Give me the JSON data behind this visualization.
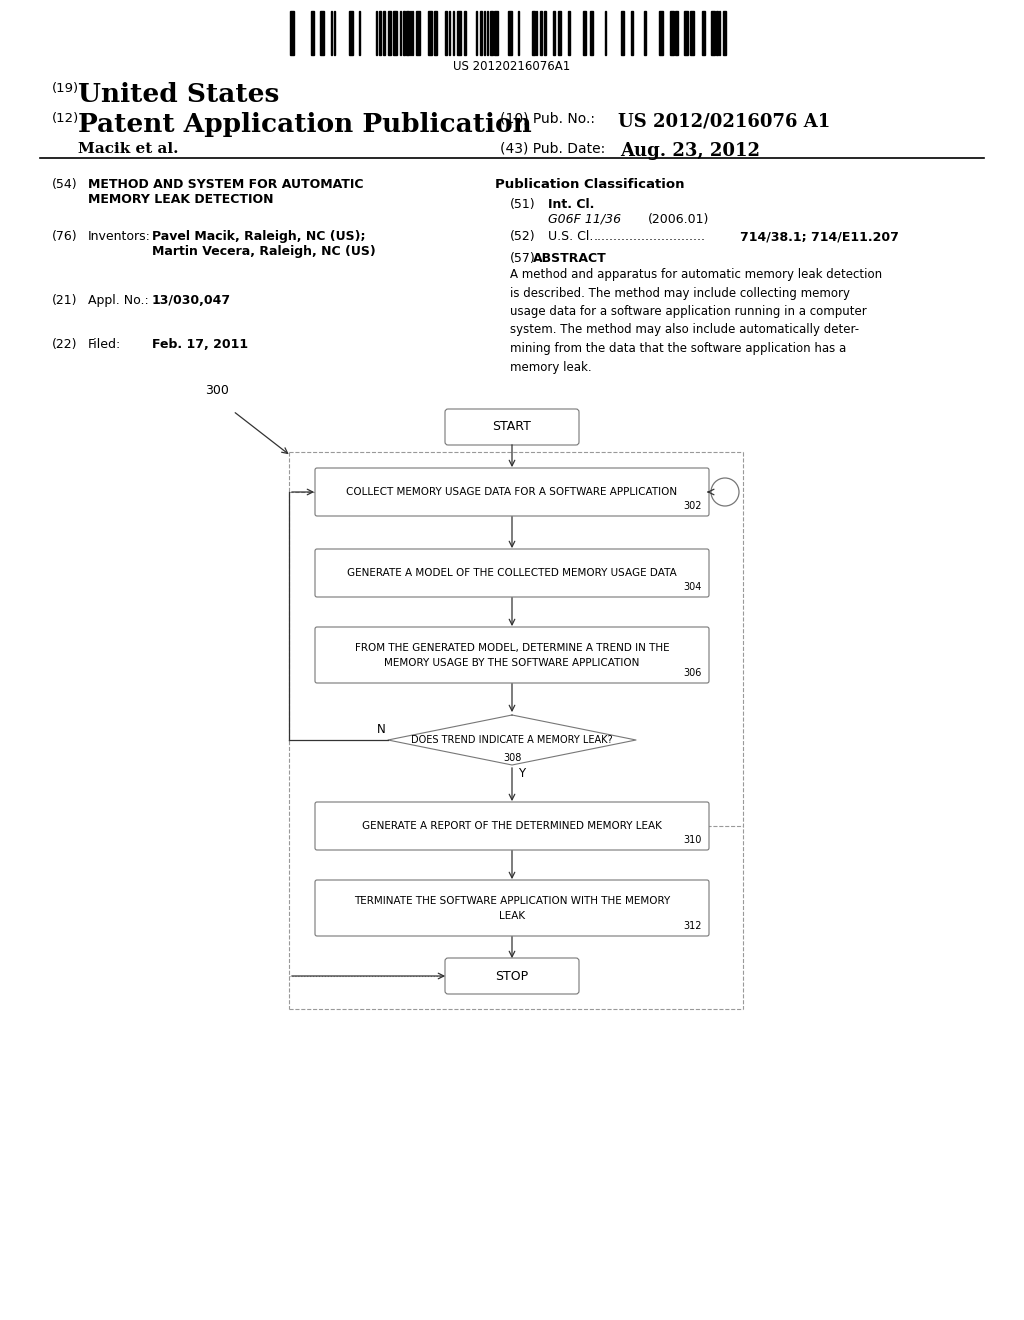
{
  "bg_color": "#ffffff",
  "barcode_text": "US 20120216076A1",
  "header": {
    "country_prefix": "(19)",
    "country": "United States",
    "type_prefix": "(12)",
    "type": "Patent Application Publication",
    "pub_no_prefix": "(10) Pub. No.:",
    "pub_no": "US 2012/0216076 A1",
    "authors": "Macik et al.",
    "date_prefix": "(43) Pub. Date:",
    "date": "Aug. 23, 2012"
  },
  "left_col": {
    "title_prefix": "(54)",
    "title_line1": "METHOD AND SYSTEM FOR AUTOMATIC",
    "title_line2": "MEMORY LEAK DETECTION",
    "inventors_prefix": "(76)",
    "inventors_label": "Inventors:",
    "inventors_line1": "Pavel Macik, Raleigh, NC (US);",
    "inventors_line2": "Martin Vecera, Raleigh, NC (US)",
    "appl_prefix": "(21)",
    "appl_label": "Appl. No.:",
    "appl_value": "13/030,047",
    "filed_prefix": "(22)",
    "filed_label": "Filed:",
    "filed_value": "Feb. 17, 2011"
  },
  "right_col": {
    "pub_class_title": "Publication Classification",
    "int_cl_prefix": "(51)",
    "int_cl_label": "Int. Cl.",
    "int_cl_class": "G06F 11/36",
    "int_cl_year": "(2006.01)",
    "us_cl_prefix": "(52)",
    "us_cl_label": "U.S. Cl.",
    "us_cl_dots": "............................",
    "us_cl_value": "714/38.1; 714/E11.207",
    "abstract_prefix": "(57)",
    "abstract_title": "ABSTRACT",
    "abstract_text": "A method and apparatus for automatic memory leak detection\nis described. The method may include collecting memory\nusage data for a software application running in a computer\nsystem. The method may also include automatically deter-\nmining from the data that the software application has a\nmemory leak."
  },
  "flowchart": {
    "start_label": "START",
    "box1_label": "COLLECT MEMORY USAGE DATA FOR A SOFTWARE APPLICATION",
    "box1_num": "302",
    "box2_label": "GENERATE A MODEL OF THE COLLECTED MEMORY USAGE DATA",
    "box2_num": "304",
    "box3_line1": "FROM THE GENERATED MODEL, DETERMINE A TREND IN THE",
    "box3_line2": "MEMORY USAGE BY THE SOFTWARE APPLICATION",
    "box3_num": "306",
    "diamond_label": "DOES TREND INDICATE A MEMORY LEAK?",
    "diamond_num": "308",
    "box4_label": "GENERATE A REPORT OF THE DETERMINED MEMORY LEAK",
    "box4_num": "310",
    "box5_line1": "TERMINATE THE SOFTWARE APPLICATION WITH THE MEMORY",
    "box5_line2": "LEAK",
    "box5_num": "312",
    "stop_label": "STOP",
    "loop_label": "300"
  }
}
